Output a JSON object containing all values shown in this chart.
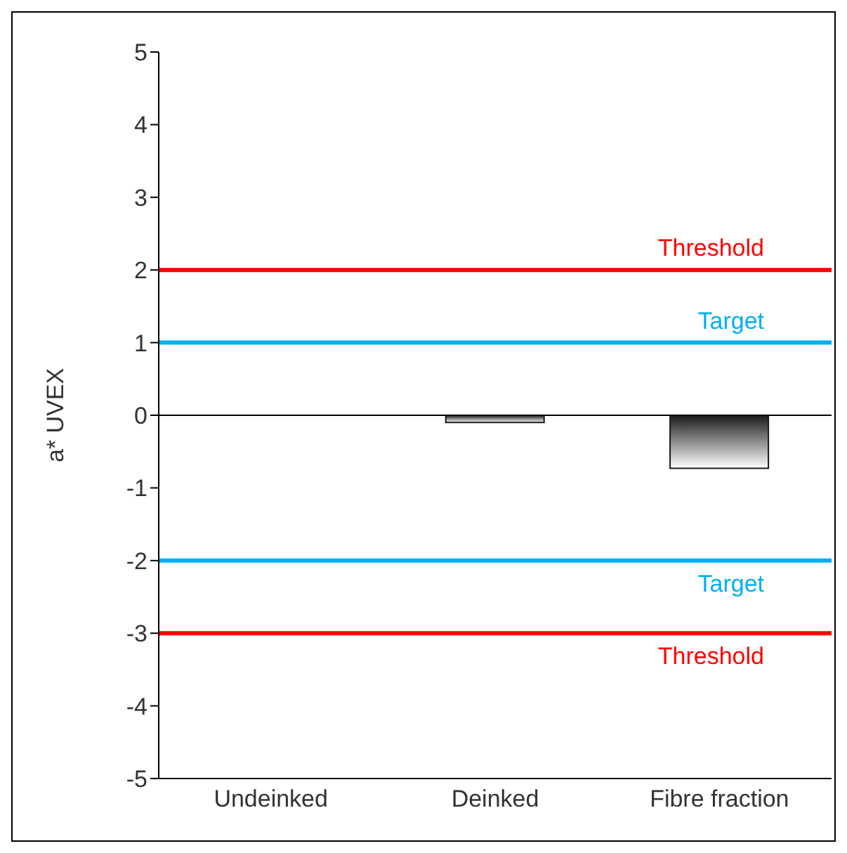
{
  "chart_data": {
    "type": "bar",
    "ylabel": "a* UVEX",
    "categories": [
      "Undeinked",
      "Deinked",
      "Fibre fraction"
    ],
    "values": [
      0,
      -0.1,
      -0.73
    ],
    "color": "#1a1a1a",
    "ylim": [
      -5,
      5
    ],
    "yticks": [
      -5,
      -4,
      -3,
      -2,
      -1,
      0,
      1,
      2,
      3,
      4,
      5
    ],
    "grid": false,
    "legend": false,
    "ref_lines": [
      {
        "axis": "y",
        "value": 2,
        "label": "Threshold",
        "color": "#ff0000"
      },
      {
        "axis": "y",
        "value": 1,
        "label": "Target",
        "color": "#00b0f0"
      },
      {
        "axis": "y",
        "value": -2,
        "label": "Target",
        "color": "#00b0f0"
      },
      {
        "axis": "y",
        "value": -3,
        "label": "Threshold",
        "color": "#ff0000"
      }
    ]
  }
}
